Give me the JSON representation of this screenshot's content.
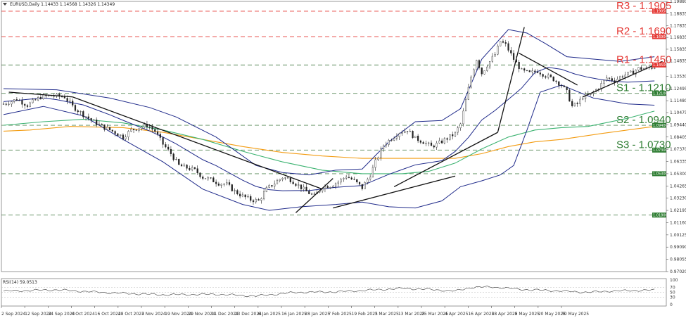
{
  "header": {
    "title": "EURUSD,Daily  1.14433 1.14568 1.14326 1.14349",
    "rsi_label": "RSI(14) 59.0513"
  },
  "chart_data": {
    "type": "line",
    "instrument": "EURUSD",
    "timeframe": "Daily",
    "ohlc_current": {
      "open": 1.14433,
      "high": 1.14568,
      "low": 1.14326,
      "close": 1.14349
    },
    "yaxis_ticks": [
      "1.19880",
      "1.18835",
      "1.17835",
      "1.16835",
      "1.15835",
      "1.14835",
      "1.13530",
      "1.12495",
      "1.11480",
      "1.10475",
      "1.09440",
      "1.08405",
      "1.07370",
      "1.06335",
      "1.05300",
      "1.04265",
      "1.03230",
      "1.02195",
      "1.01160",
      "1.00125",
      "0.99090",
      "0.98055",
      "0.97020"
    ],
    "ylim": [
      0.9702,
      1.1988
    ],
    "xaxis_ticks": [
      "2 Sep 2024",
      "12 Sep 2024",
      "24 Sep 2024",
      "4 Oct 2024",
      "16 Oct 2024",
      "28 Oct 2024",
      "7 Nov 2024",
      "19 Nov 2024",
      "29 Nov 2024",
      "11 Dec 2024",
      "23 Dec 2024",
      "6 Jan 2025",
      "16 Jan 2025",
      "28 Jan 2025",
      "7 Feb 2025",
      "19 Feb 2025",
      "3 Mar 2025",
      "13 Mar 2025",
      "25 Mar 2025",
      "4 Apr 2025",
      "16 Apr 2025",
      "28 Apr 2025",
      "8 May 2025",
      "20 May 2025",
      "30 May 2025"
    ],
    "levels": [
      {
        "name": "R3",
        "label": "R3 - 1.1905",
        "value": 1.1905,
        "box": "1.19050",
        "color": "#e53935",
        "style": "dash-red"
      },
      {
        "name": "R2",
        "label": "R2 - 1.1690",
        "value": 1.169,
        "box": "1.16900",
        "color": "#e53935",
        "style": "dash-red"
      },
      {
        "name": "R1",
        "label": "R1 - 1.1450",
        "value": 1.145,
        "box": "1.14500",
        "color": "#e53935",
        "style": "dash-gray"
      },
      {
        "name": "S1",
        "label": "S1 - 1.1210",
        "value": 1.121,
        "box": "1.12100",
        "color": "#2e7d32",
        "style": "dash-gray"
      },
      {
        "name": "S2",
        "label": "S2 - 1.0940",
        "value": 1.094,
        "box": "1.09400",
        "color": "#2e7d32",
        "style": "dash-gray"
      },
      {
        "name": "S3",
        "label": "S3 - 1.0730",
        "value": 1.073,
        "box": "1.07300",
        "color": "#2e7d32",
        "style": "dash-gray"
      },
      {
        "name": "L4",
        "label": "",
        "value": 1.053,
        "box": "1.05300",
        "color": "#2e7d32",
        "style": "dash-gray"
      },
      {
        "name": "L5",
        "label": "",
        "value": 1.018,
        "box": "1.01800",
        "color": "#2e7d32",
        "style": "dash-gray"
      }
    ],
    "close_path": [
      [
        0,
        1.112
      ],
      [
        5,
        1.116
      ],
      [
        9,
        1.111
      ],
      [
        14,
        1.118
      ],
      [
        18,
        1.119
      ],
      [
        23,
        1.118
      ],
      [
        26,
        1.11
      ],
      [
        30,
        1.103
      ],
      [
        34,
        1.097
      ],
      [
        38,
        1.092
      ],
      [
        42,
        1.088
      ],
      [
        45,
        1.084
      ],
      [
        48,
        1.09
      ],
      [
        51,
        1.092
      ],
      [
        54,
        1.094
      ],
      [
        57,
        1.089
      ],
      [
        60,
        1.078
      ],
      [
        63,
        1.07
      ],
      [
        66,
        1.06
      ],
      [
        69,
        1.058
      ],
      [
        72,
        1.056
      ],
      [
        75,
        1.05
      ],
      [
        78,
        1.048
      ],
      [
        81,
        1.045
      ],
      [
        84,
        1.044
      ],
      [
        87,
        1.038
      ],
      [
        90,
        1.034
      ],
      [
        93,
        1.031
      ],
      [
        96,
        1.03
      ],
      [
        99,
        1.04
      ],
      [
        102,
        1.045
      ],
      [
        105,
        1.05
      ],
      [
        108,
        1.048
      ],
      [
        111,
        1.043
      ],
      [
        114,
        1.038
      ],
      [
        117,
        1.034
      ],
      [
        120,
        1.042
      ],
      [
        123,
        1.043
      ],
      [
        126,
        1.046
      ],
      [
        129,
        1.051
      ],
      [
        132,
        1.047
      ],
      [
        135,
        1.041
      ],
      [
        138,
        1.052
      ],
      [
        140,
        1.063
      ],
      [
        143,
        1.077
      ],
      [
        146,
        1.083
      ],
      [
        149,
        1.088
      ],
      [
        152,
        1.09
      ],
      [
        155,
        1.083
      ],
      [
        158,
        1.08
      ],
      [
        161,
        1.076
      ],
      [
        164,
        1.079
      ],
      [
        167,
        1.083
      ],
      [
        170,
        1.087
      ],
      [
        172,
        1.095
      ],
      [
        174,
        1.115
      ],
      [
        176,
        1.135
      ],
      [
        178,
        1.15
      ],
      [
        180,
        1.138
      ],
      [
        182,
        1.145
      ],
      [
        185,
        1.154
      ],
      [
        187,
        1.165
      ],
      [
        189,
        1.162
      ],
      [
        192,
        1.15
      ],
      [
        195,
        1.14
      ],
      [
        198,
        1.138
      ],
      [
        201,
        1.14
      ],
      [
        204,
        1.136
      ],
      [
        207,
        1.133
      ],
      [
        210,
        1.128
      ],
      [
        212,
        1.122
      ],
      [
        214,
        1.11
      ],
      [
        216,
        1.112
      ],
      [
        218,
        1.118
      ],
      [
        221,
        1.12
      ],
      [
        224,
        1.126
      ],
      [
        227,
        1.134
      ],
      [
        230,
        1.132
      ],
      [
        233,
        1.136
      ],
      [
        236,
        1.138
      ],
      [
        239,
        1.142
      ],
      [
        242,
        1.142
      ],
      [
        245,
        1.1435
      ]
    ],
    "bollinger_upper": [
      [
        0,
        1.125
      ],
      [
        20,
        1.124
      ],
      [
        40,
        1.117
      ],
      [
        55,
        1.109
      ],
      [
        65,
        1.101
      ],
      [
        80,
        1.084
      ],
      [
        95,
        1.06
      ],
      [
        105,
        1.054
      ],
      [
        115,
        1.052
      ],
      [
        125,
        1.056
      ],
      [
        135,
        1.057
      ],
      [
        145,
        1.08
      ],
      [
        155,
        1.097
      ],
      [
        165,
        1.098
      ],
      [
        172,
        1.108
      ],
      [
        180,
        1.15
      ],
      [
        190,
        1.175
      ],
      [
        197,
        1.172
      ],
      [
        204,
        1.163
      ],
      [
        212,
        1.152
      ],
      [
        222,
        1.15
      ],
      [
        232,
        1.148
      ],
      [
        245,
        1.152
      ]
    ],
    "bollinger_lower": [
      [
        0,
        1.103
      ],
      [
        15,
        1.11
      ],
      [
        30,
        1.102
      ],
      [
        45,
        1.082
      ],
      [
        60,
        1.063
      ],
      [
        75,
        1.04
      ],
      [
        90,
        1.027
      ],
      [
        100,
        1.022
      ],
      [
        112,
        1.025
      ],
      [
        125,
        1.027
      ],
      [
        135,
        1.029
      ],
      [
        145,
        1.025
      ],
      [
        155,
        1.024
      ],
      [
        165,
        1.03
      ],
      [
        172,
        1.042
      ],
      [
        180,
        1.047
      ],
      [
        187,
        1.052
      ],
      [
        192,
        1.06
      ],
      [
        197,
        1.09
      ],
      [
        202,
        1.122
      ],
      [
        210,
        1.128
      ],
      [
        222,
        1.117
      ],
      [
        235,
        1.112
      ],
      [
        245,
        1.111
      ]
    ],
    "ma_green": [
      [
        0,
        1.094
      ],
      [
        15,
        1.097
      ],
      [
        30,
        1.099
      ],
      [
        45,
        1.096
      ],
      [
        60,
        1.09
      ],
      [
        75,
        1.082
      ],
      [
        90,
        1.072
      ],
      [
        105,
        1.063
      ],
      [
        120,
        1.056
      ],
      [
        135,
        1.053
      ],
      [
        150,
        1.053
      ],
      [
        160,
        1.055
      ],
      [
        170,
        1.062
      ],
      [
        180,
        1.074
      ],
      [
        190,
        1.084
      ],
      [
        200,
        1.09
      ],
      [
        210,
        1.092
      ],
      [
        220,
        1.093
      ],
      [
        235,
        1.1
      ],
      [
        245,
        1.106
      ]
    ],
    "ma_orange": [
      [
        0,
        1.089
      ],
      [
        10,
        1.09
      ],
      [
        25,
        1.093
      ],
      [
        45,
        1.092
      ],
      [
        60,
        1.088
      ],
      [
        75,
        1.082
      ],
      [
        90,
        1.076
      ],
      [
        105,
        1.071
      ],
      [
        120,
        1.068
      ],
      [
        135,
        1.066
      ],
      [
        150,
        1.066
      ],
      [
        160,
        1.066
      ],
      [
        170,
        1.066
      ],
      [
        180,
        1.07
      ],
      [
        190,
        1.076
      ],
      [
        200,
        1.08
      ],
      [
        210,
        1.082
      ],
      [
        225,
        1.087
      ],
      [
        245,
        1.093
      ]
    ],
    "trendlines": [
      [
        [
          2,
          1.122
        ],
        [
          26,
          1.118
        ]
      ],
      [
        [
          26,
          1.118
        ],
        [
          120,
          1.04
        ]
      ],
      [
        [
          110,
          1.02
        ],
        [
          124,
          1.049
        ]
      ],
      [
        [
          124,
          1.024
        ],
        [
          170,
          1.051
        ]
      ],
      [
        [
          147,
          1.042
        ],
        [
          186,
          1.088
        ]
      ],
      [
        [
          186,
          1.088
        ],
        [
          196,
          1.177
        ]
      ],
      [
        [
          194,
          1.155
        ],
        [
          216,
          1.128
        ]
      ],
      [
        [
          218,
          1.118
        ],
        [
          248,
          1.148
        ]
      ]
    ],
    "rsi": {
      "value": 59.0513,
      "ylim": [
        0,
        100
      ],
      "ticks": [
        "100",
        "70",
        "50",
        "30",
        "0"
      ],
      "path": [
        [
          0,
          55
        ],
        [
          20,
          60
        ],
        [
          40,
          48
        ],
        [
          60,
          40
        ],
        [
          80,
          42
        ],
        [
          95,
          35
        ],
        [
          110,
          50
        ],
        [
          125,
          52
        ],
        [
          140,
          60
        ],
        [
          150,
          66
        ],
        [
          160,
          62
        ],
        [
          170,
          55
        ],
        [
          176,
          70
        ],
        [
          184,
          72
        ],
        [
          190,
          66
        ],
        [
          198,
          60
        ],
        [
          205,
          58
        ],
        [
          212,
          54
        ],
        [
          220,
          50
        ],
        [
          228,
          55
        ],
        [
          236,
          57
        ],
        [
          245,
          59
        ]
      ]
    }
  }
}
